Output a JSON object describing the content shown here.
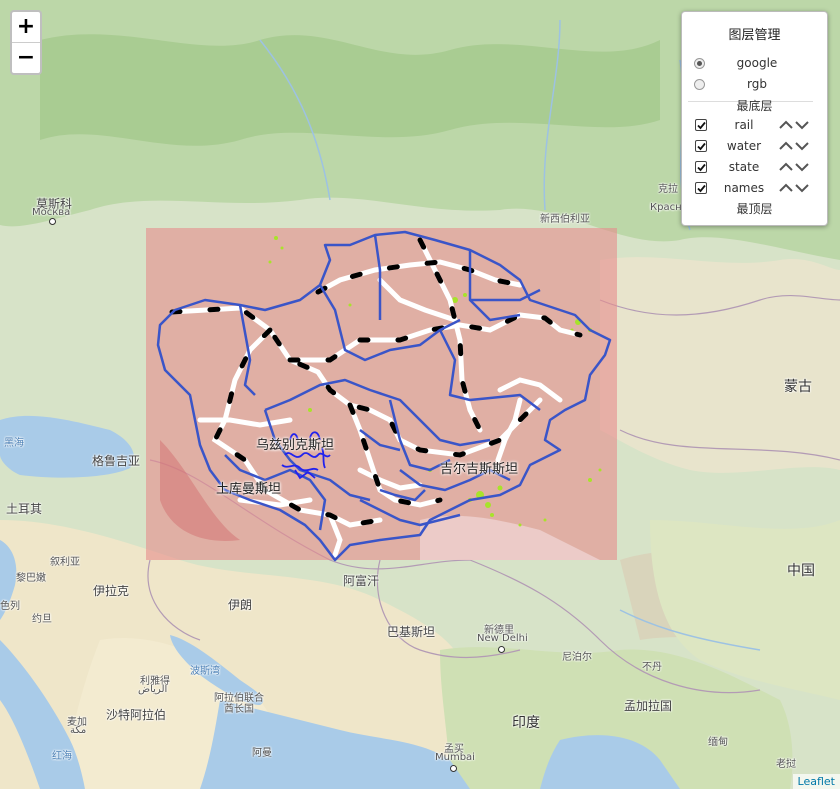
{
  "zoom": {
    "in_label": "+",
    "out_label": "−"
  },
  "layer_panel": {
    "title": "图层管理",
    "base_layers": [
      {
        "label": "google",
        "selected": true
      },
      {
        "label": "rgb",
        "selected": false
      }
    ],
    "bottom_caption": "最底层",
    "overlays": [
      {
        "label": "rail",
        "checked": true
      },
      {
        "label": "water",
        "checked": true
      },
      {
        "label": "state",
        "checked": true
      },
      {
        "label": "names",
        "checked": true
      }
    ],
    "top_caption": "最顶层"
  },
  "labels": {
    "moscow_cn": "莫斯科",
    "moscow_ru": "Москва",
    "novosibirsk": "新西伯利亚",
    "krasnoyarsk_cn": "克拉",
    "krasnoyarsk_ru": "Красн",
    "mongolia": "蒙古",
    "black_sea": "黑海",
    "georgia": "格鲁吉亚",
    "turkey": "土耳其",
    "syria": "叙利亚",
    "lebanon": "黎巴嫩",
    "israel": "色列",
    "jordan": "约旦",
    "iraq": "伊拉克",
    "iran": "伊朗",
    "afghanistan": "阿富汗",
    "pakistan": "巴基斯坦",
    "new_delhi_cn": "新德里",
    "new_delhi_en": "New Delhi",
    "nepal": "尼泊尔",
    "bhutan": "不丹",
    "china": "中国",
    "riyadh_cn": "利雅得",
    "riyadh_ar": "الرياض",
    "persian_gulf": "波斯湾",
    "uae_1": "阿拉伯联合",
    "uae_2": "酋长国",
    "saudi": "沙特阿拉伯",
    "mecca_cn": "麦加",
    "mecca_ar": "مكة",
    "red_sea": "红海",
    "oman": "阿曼",
    "india": "印度",
    "mumbai_cn": "孟买",
    "mumbai_en": "Mumbai",
    "bangladesh": "孟加拉国",
    "myanmar": "缅甸",
    "laos": "老挝",
    "uzbekistan": "乌兹别克斯坦",
    "kyrgyzstan": "吉尔吉斯斯坦",
    "turkmenistan": "土库曼斯坦"
  },
  "colors": {
    "overlay": "#e68c8c",
    "state_line": "#3a55c8",
    "water_line": "#2222ee",
    "vegetation": "#a8e32a"
  },
  "attribution": "Leaflet"
}
